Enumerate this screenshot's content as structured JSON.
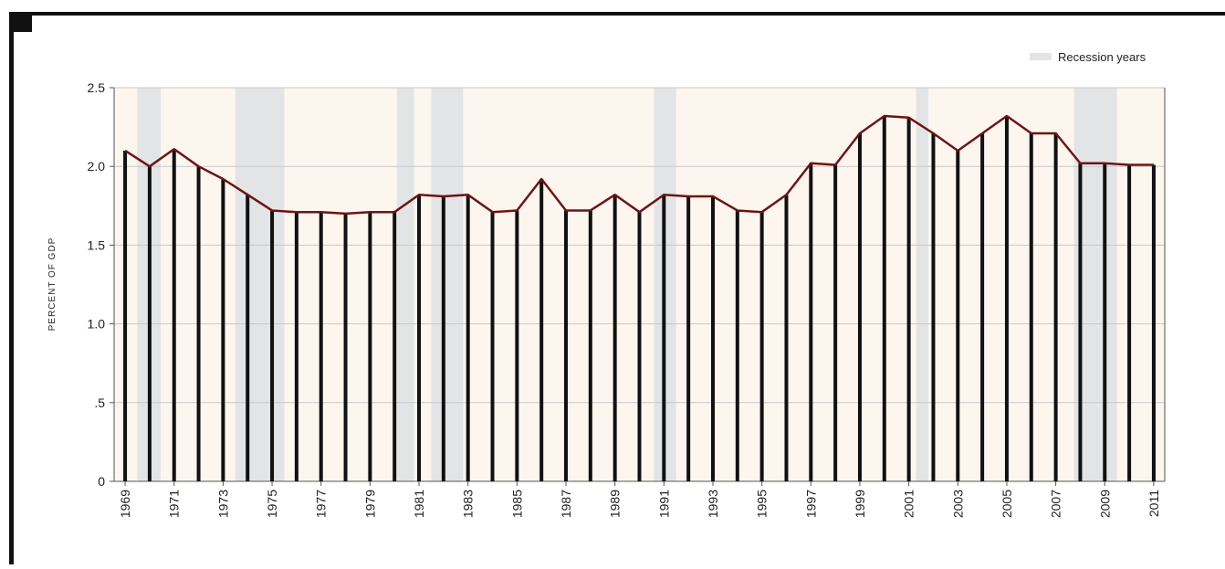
{
  "chart_data": {
    "type": "bar-line",
    "ylabel": "PERCENT OF GDP",
    "legend_label": "Recession years",
    "legend": "top-right",
    "grid": true,
    "background": "#fcf6ee",
    "recession_color": "#e3e4e6",
    "bar_color": "#111111",
    "line_color": "#6e1414",
    "x": [
      1969,
      1970,
      1971,
      1972,
      1973,
      1974,
      1975,
      1976,
      1977,
      1978,
      1979,
      1980,
      1981,
      1982,
      1983,
      1984,
      1985,
      1986,
      1987,
      1988,
      1989,
      1990,
      1991,
      1992,
      1993,
      1994,
      1995,
      1996,
      1997,
      1998,
      1999,
      2000,
      2001,
      2002,
      2003,
      2004,
      2005,
      2006,
      2007,
      2008,
      2009,
      2010,
      2011
    ],
    "values": [
      2.1,
      2.0,
      2.11,
      2.0,
      1.92,
      1.82,
      1.72,
      1.71,
      1.71,
      1.7,
      1.71,
      1.71,
      1.82,
      1.81,
      1.82,
      1.71,
      1.72,
      1.92,
      1.72,
      1.72,
      1.82,
      1.71,
      1.82,
      1.81,
      1.81,
      1.72,
      1.71,
      1.82,
      2.02,
      2.01,
      2.21,
      2.32,
      2.31,
      2.21,
      2.1,
      2.21,
      2.32,
      2.21,
      2.21,
      2.02,
      2.02,
      2.01,
      2.01
    ],
    "recessions": [
      {
        "start": 1969.5,
        "end": 1970.45
      },
      {
        "start": 1973.5,
        "end": 1975.5
      },
      {
        "start": 1980.1,
        "end": 1980.8
      },
      {
        "start": 1981.5,
        "end": 1982.8
      },
      {
        "start": 1990.6,
        "end": 1991.5
      },
      {
        "start": 2001.3,
        "end": 2001.8
      },
      {
        "start": 2007.75,
        "end": 2009.5
      }
    ],
    "xlim": [
      1968.55,
      2011.45
    ],
    "xticks": [
      1969,
      1971,
      1973,
      1975,
      1977,
      1979,
      1981,
      1983,
      1985,
      1987,
      1989,
      1991,
      1993,
      1995,
      1997,
      1999,
      2001,
      2003,
      2005,
      2007,
      2009,
      2011
    ],
    "ylim": [
      0,
      2.5
    ],
    "yticks": [
      0,
      {
        "value": 0.5,
        "label": ".5"
      },
      {
        "value": 1,
        "label": "1.0"
      },
      1.5,
      {
        "value": 2,
        "label": "2.0"
      },
      2.5
    ]
  }
}
